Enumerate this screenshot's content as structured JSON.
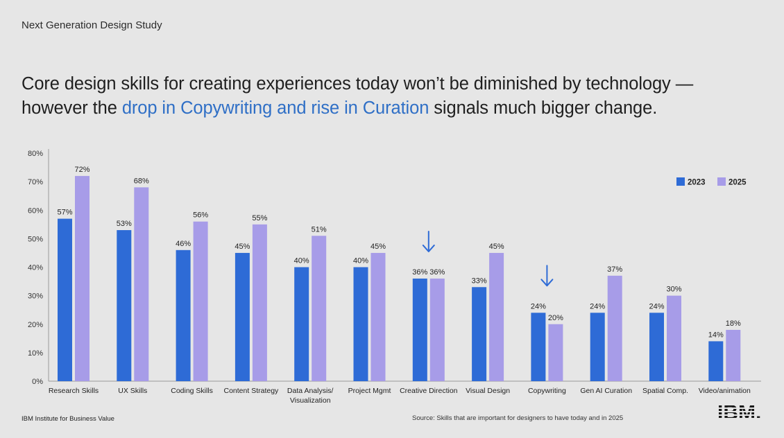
{
  "eyebrow": "Next Generation Design Study",
  "headline": {
    "part1": "Core design skills for creating experiences today won’t be diminished by technology —",
    "part2_pre": "however the ",
    "part2_highlight": "drop in Copywriting and rise in Curation",
    "part2_post": " signals much bigger change."
  },
  "footer": {
    "left": "IBM Institute for Business Value",
    "source": "Source: Skills that are important for designers to have today and in 2025",
    "logo_text": "IBM."
  },
  "colors": {
    "series_2023": "#2e6bd6",
    "series_2025": "#a79ce8",
    "highlight": "#2f6fc6",
    "arrow": "#2e6bd6"
  },
  "icons": [
    "down-arrow-icon"
  ],
  "chart_data": {
    "type": "bar",
    "categories": [
      "Research Skills",
      "UX Skills",
      "Coding Skills",
      "Content Strategy",
      [
        "Data Analysis/",
        "Visualization"
      ],
      "Project Mgmt",
      "Creative Direction",
      "Visual Design",
      "Copywriting",
      "Gen AI Curation",
      "Spatial Comp.",
      "Video/animation"
    ],
    "series": [
      {
        "name": "2023",
        "values": [
          57,
          53,
          46,
          45,
          40,
          40,
          36,
          33,
          24,
          24,
          24,
          14
        ]
      },
      {
        "name": "2025",
        "values": [
          72,
          68,
          56,
          55,
          51,
          45,
          36,
          45,
          20,
          37,
          30,
          18
        ]
      }
    ],
    "ylim": [
      0,
      80
    ],
    "yticks": [
      "0%",
      "10%",
      "20%",
      "30%",
      "40%",
      "50%",
      "60%",
      "70%",
      "80%"
    ],
    "value_suffix": "%",
    "legend_position": "top-right",
    "grid": false,
    "annotations": [
      {
        "type": "down-arrow",
        "category": "Creative Direction"
      },
      {
        "type": "down-arrow",
        "category": "Copywriting"
      }
    ]
  }
}
